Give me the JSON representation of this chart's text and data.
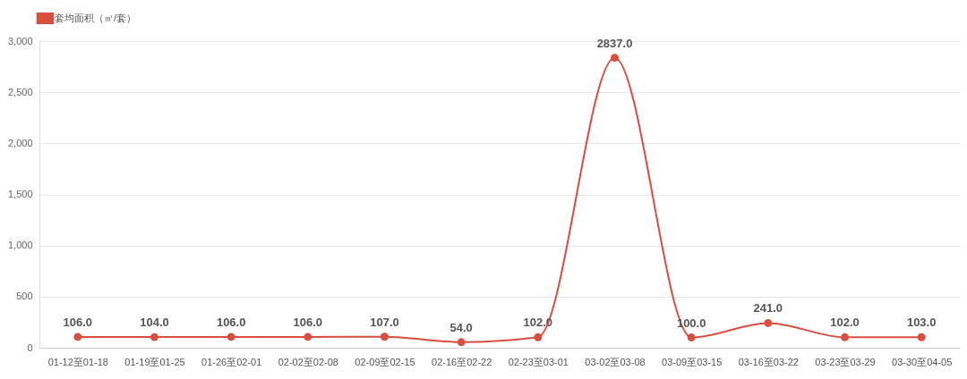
{
  "chart_data": {
    "type": "line",
    "categories": [
      "01-12至01-18",
      "01-19至01-25",
      "01-26至02-01",
      "02-02至02-08",
      "02-09至02-15",
      "02-16至02-22",
      "02-23至03-01",
      "03-02至03-08",
      "03-09至03-15",
      "03-16至03-22",
      "03-23至03-29",
      "03-30至04-05"
    ],
    "series": [
      {
        "name": "套均面积（㎡/套）",
        "color": "#d94e3f",
        "values": [
          106,
          104,
          106,
          106,
          107,
          54,
          102,
          2837,
          100,
          241,
          102,
          103
        ],
        "value_labels": [
          "106.0",
          "104.0",
          "106.0",
          "106.0",
          "107.0",
          "54.0",
          "102.0",
          "2837.0",
          "100.0",
          "241.0",
          "102.0",
          "103.0"
        ]
      }
    ],
    "ylim": [
      0,
      3000
    ],
    "yticks": [
      {
        "value": 0,
        "label": "0"
      },
      {
        "value": 500,
        "label": "500"
      },
      {
        "value": 1000,
        "label": "1,000"
      },
      {
        "value": 1500,
        "label": "1,500"
      },
      {
        "value": 2000,
        "label": "2,000"
      },
      {
        "value": 2500,
        "label": "2,500"
      },
      {
        "value": 3000,
        "label": "3,000"
      }
    ],
    "grid": "y",
    "legend": "top",
    "marker": "circle"
  }
}
